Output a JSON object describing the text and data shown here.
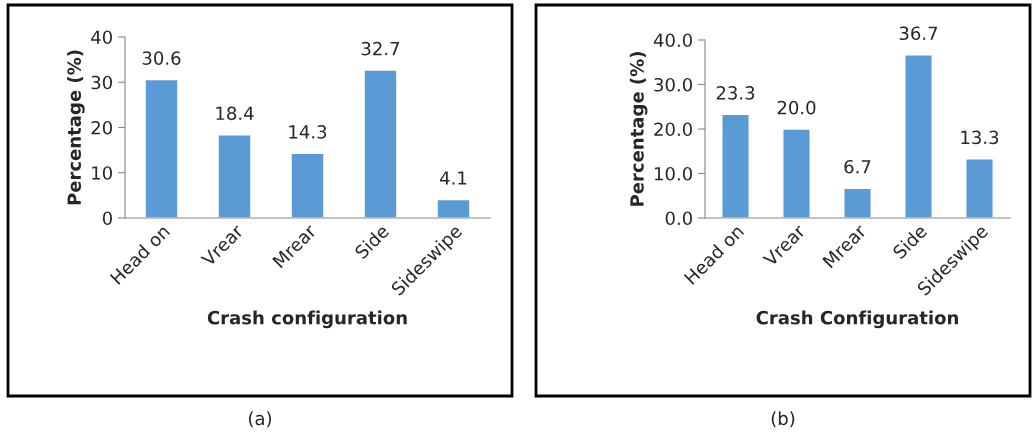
{
  "chart_data": [
    {
      "type": "bar",
      "categories": [
        "Head on",
        "Vrear",
        "Mrear",
        "Side",
        "Sideswipe"
      ],
      "values": [
        30.6,
        18.4,
        14.3,
        32.7,
        4.1
      ],
      "color": "#5b9bd5",
      "xlabel": "Crash configuration",
      "ylabel": "Percentage (%)",
      "ylim": [
        0,
        40
      ],
      "yticks": [
        0,
        10,
        20,
        30,
        40
      ],
      "data_labels": true,
      "annotations": [
        "(a)"
      ]
    },
    {
      "type": "bar",
      "categories": [
        "Head on",
        "Vrear",
        "Mrear",
        "Side",
        "Sideswipe"
      ],
      "values": [
        23.3,
        20.0,
        6.7,
        36.7,
        13.3
      ],
      "value_labels": [
        "23.3",
        "20.0",
        "6.7",
        "36.7",
        "13.3"
      ],
      "color": "#5b9bd5",
      "xlabel": "Crash Configuration",
      "ylabel": "Percentage (%)",
      "ylim": [
        0,
        40
      ],
      "yticks": [
        {
          "value": 0,
          "label": "0.0"
        },
        {
          "value": 10,
          "label": "10.0"
        },
        {
          "value": 20,
          "label": "20.0"
        },
        {
          "value": 30,
          "label": "30.0"
        },
        {
          "value": 40,
          "label": "40.0"
        }
      ],
      "annotations": [
        "(b)"
      ]
    }
  ]
}
